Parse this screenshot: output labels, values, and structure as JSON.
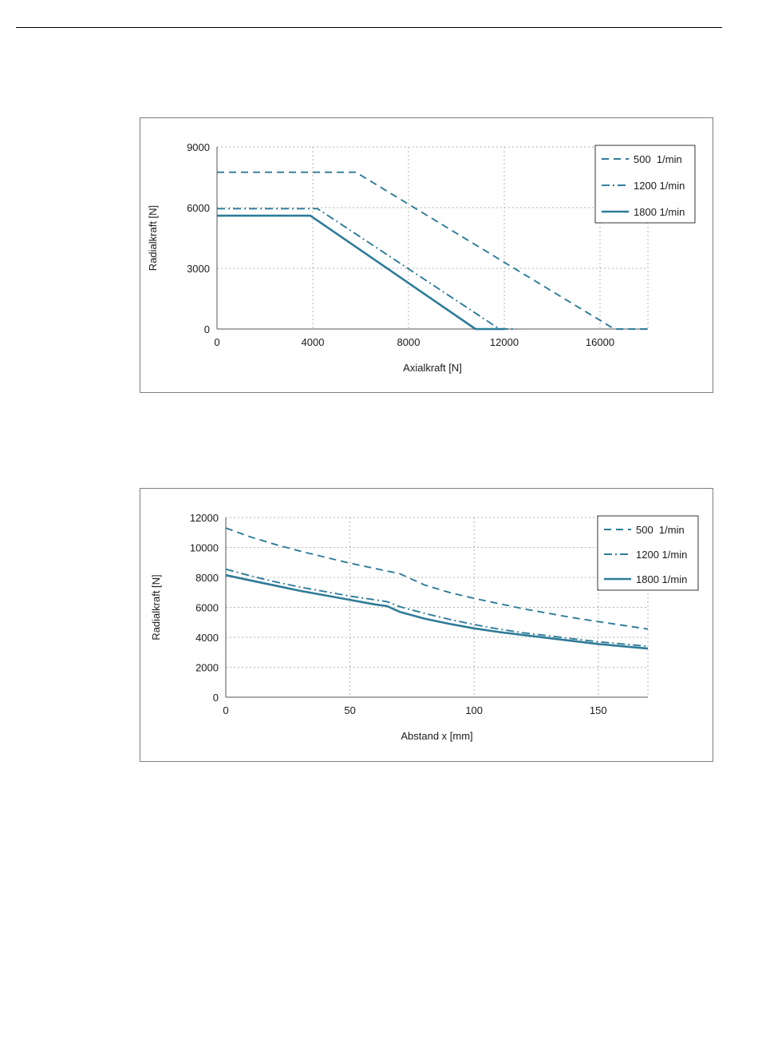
{
  "chart_data": [
    {
      "type": "line",
      "title": "",
      "xlabel": "Axialkraft [N]",
      "ylabel": "Radialkraft [N]",
      "xlim": [
        0,
        18000
      ],
      "ylim": [
        0,
        9000
      ],
      "xticks": [
        0,
        4000,
        8000,
        12000,
        16000
      ],
      "yticks": [
        0,
        3000,
        6000,
        9000
      ],
      "grid": true,
      "legend_position": "top-right",
      "series": [
        {
          "name": "500  1/min",
          "style": "dash",
          "x": [
            0,
            5800,
            16600,
            18000
          ],
          "y": [
            7750,
            7750,
            0,
            0
          ]
        },
        {
          "name": "1200 1/min",
          "style": "dashdot",
          "x": [
            0,
            4200,
            11800,
            12500
          ],
          "y": [
            5950,
            5950,
            0,
            0
          ]
        },
        {
          "name": "1800 1/min",
          "style": "solid",
          "x": [
            0,
            3900,
            10800,
            12000
          ],
          "y": [
            5600,
            5600,
            0,
            0
          ]
        }
      ]
    },
    {
      "type": "line",
      "title": "",
      "xlabel": "Abstand x [mm]",
      "ylabel": "Radialkraft [N]",
      "xlim": [
        0,
        170
      ],
      "ylim": [
        0,
        12000
      ],
      "xticks": [
        0,
        50,
        100,
        150
      ],
      "yticks": [
        0,
        2000,
        4000,
        6000,
        8000,
        10000,
        12000
      ],
      "grid": true,
      "legend_position": "top-right",
      "series": [
        {
          "name": "500  1/min",
          "style": "dash",
          "x": [
            0,
            10,
            20,
            30,
            40,
            50,
            60,
            70,
            80,
            90,
            100,
            110,
            120,
            130,
            140,
            150,
            160,
            170
          ],
          "y": [
            11300,
            10700,
            10200,
            9750,
            9350,
            8950,
            8600,
            8250,
            7500,
            7000,
            6600,
            6250,
            5900,
            5600,
            5300,
            5050,
            4800,
            4550
          ]
        },
        {
          "name": "1200 1/min",
          "style": "dashdot",
          "x": [
            0,
            10,
            20,
            30,
            40,
            50,
            60,
            65,
            70,
            80,
            90,
            100,
            110,
            120,
            130,
            140,
            150,
            160,
            170
          ],
          "y": [
            8550,
            8100,
            7700,
            7350,
            7050,
            6750,
            6500,
            6380,
            6050,
            5600,
            5200,
            4850,
            4550,
            4300,
            4100,
            3900,
            3700,
            3550,
            3400
          ]
        },
        {
          "name": "1800 1/min",
          "style": "solid",
          "x": [
            0,
            10,
            20,
            30,
            40,
            50,
            60,
            65,
            70,
            80,
            90,
            100,
            110,
            120,
            130,
            140,
            150,
            160,
            170
          ],
          "y": [
            8150,
            7800,
            7450,
            7100,
            6800,
            6500,
            6200,
            6080,
            5700,
            5250,
            4900,
            4600,
            4350,
            4150,
            3950,
            3750,
            3550,
            3400,
            3250
          ]
        }
      ]
    }
  ],
  "colors": {
    "series": "#2e7b98",
    "grid": "#b3b3b3",
    "frame": "#7f7f7f"
  }
}
